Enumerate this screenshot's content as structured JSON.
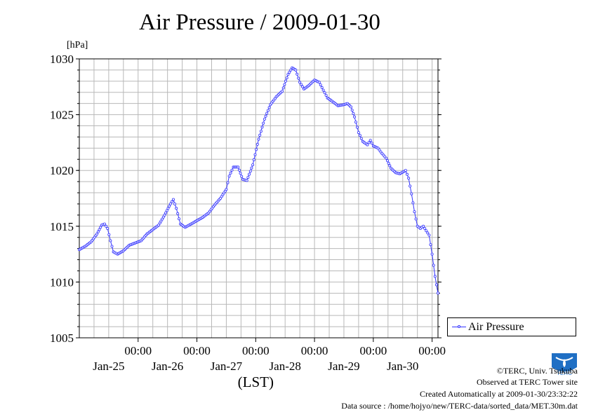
{
  "chart_data": {
    "type": "line",
    "title": "Air Pressure / 2009-01-30",
    "ylabel": "[hPa]",
    "xlabel": "(LST)",
    "ylim": [
      1005,
      1030
    ],
    "yticks": [
      "1030",
      "1025",
      "1020",
      "1015",
      "1010",
      "1005"
    ],
    "xlim": [
      -1,
      5.1
    ],
    "xticks": [
      {
        "time": "00:00",
        "date": "Jan-25"
      },
      {
        "time": "00:00",
        "date": "Jan-26"
      },
      {
        "time": "00:00",
        "date": "Jan-27"
      },
      {
        "time": "00:00",
        "date": "Jan-28"
      },
      {
        "time": "00:00",
        "date": "Jan-29"
      },
      {
        "time": "00:00",
        "date": "Jan-30"
      }
    ],
    "grid": true,
    "legend_position": "right",
    "series": [
      {
        "name": "Air Pressure",
        "color": "#3333ff",
        "points": [
          [
            -1.0,
            1012.9
          ],
          [
            -0.9,
            1013.2
          ],
          [
            -0.8,
            1013.6
          ],
          [
            -0.7,
            1014.3
          ],
          [
            -0.62,
            1015.1
          ],
          [
            -0.57,
            1015.2
          ],
          [
            -0.52,
            1014.8
          ],
          [
            -0.47,
            1013.7
          ],
          [
            -0.42,
            1012.7
          ],
          [
            -0.35,
            1012.5
          ],
          [
            -0.25,
            1012.8
          ],
          [
            -0.15,
            1013.3
          ],
          [
            -0.05,
            1013.5
          ],
          [
            0.05,
            1013.7
          ],
          [
            0.15,
            1014.3
          ],
          [
            0.25,
            1014.7
          ],
          [
            0.35,
            1015.1
          ],
          [
            0.45,
            1016.0
          ],
          [
            0.55,
            1017.0
          ],
          [
            0.6,
            1017.4
          ],
          [
            0.65,
            1016.6
          ],
          [
            0.72,
            1015.2
          ],
          [
            0.8,
            1014.9
          ],
          [
            0.9,
            1015.2
          ],
          [
            1.0,
            1015.5
          ],
          [
            1.1,
            1015.8
          ],
          [
            1.2,
            1016.2
          ],
          [
            1.3,
            1016.9
          ],
          [
            1.4,
            1017.5
          ],
          [
            1.5,
            1018.3
          ],
          [
            1.55,
            1019.5
          ],
          [
            1.62,
            1020.3
          ],
          [
            1.7,
            1020.3
          ],
          [
            1.78,
            1019.2
          ],
          [
            1.85,
            1019.1
          ],
          [
            1.95,
            1020.5
          ],
          [
            2.05,
            1022.8
          ],
          [
            2.15,
            1024.6
          ],
          [
            2.25,
            1025.9
          ],
          [
            2.35,
            1026.6
          ],
          [
            2.45,
            1027.1
          ],
          [
            2.55,
            1028.6
          ],
          [
            2.62,
            1029.2
          ],
          [
            2.68,
            1029.0
          ],
          [
            2.75,
            1027.9
          ],
          [
            2.82,
            1027.3
          ],
          [
            2.9,
            1027.6
          ],
          [
            3.0,
            1028.1
          ],
          [
            3.08,
            1027.9
          ],
          [
            3.15,
            1027.2
          ],
          [
            3.22,
            1026.5
          ],
          [
            3.3,
            1026.2
          ],
          [
            3.4,
            1025.8
          ],
          [
            3.5,
            1025.9
          ],
          [
            3.56,
            1026.0
          ],
          [
            3.62,
            1025.7
          ],
          [
            3.68,
            1024.8
          ],
          [
            3.75,
            1023.4
          ],
          [
            3.82,
            1022.6
          ],
          [
            3.9,
            1022.3
          ],
          [
            3.95,
            1022.7
          ],
          [
            4.0,
            1022.2
          ],
          [
            4.08,
            1022.0
          ],
          [
            4.15,
            1021.5
          ],
          [
            4.22,
            1021.1
          ],
          [
            4.3,
            1020.2
          ],
          [
            4.38,
            1019.8
          ],
          [
            4.45,
            1019.7
          ],
          [
            4.55,
            1020.0
          ],
          [
            4.6,
            1019.3
          ],
          [
            4.65,
            1017.9
          ],
          [
            4.7,
            1016.3
          ],
          [
            4.75,
            1015.0
          ],
          [
            4.8,
            1014.8
          ],
          [
            4.85,
            1015.0
          ],
          [
            4.9,
            1014.6
          ],
          [
            4.95,
            1014.2
          ],
          [
            5.0,
            1012.5
          ],
          [
            5.05,
            1010.5
          ],
          [
            5.1,
            1009.0
          ]
        ]
      }
    ]
  },
  "footer": {
    "copyright": "©TERC, Univ. Tsukuba",
    "site": "Observed at TERC Tower site",
    "created": "Created Automatically at 2009-01-30/23:32:22",
    "source": "Data source : /home/hojyo/new/TERC-data/sorted_data/MET.30m.dat"
  },
  "logo": {
    "text": "TERC",
    "color": "#1f6fc4"
  }
}
